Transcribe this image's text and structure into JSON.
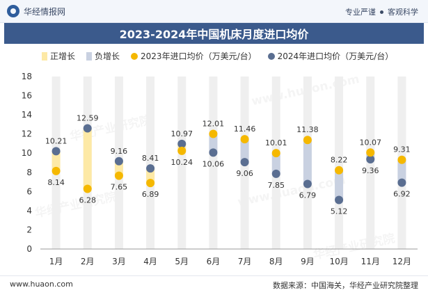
{
  "header": {
    "brand": "华经情报网",
    "tagline_left": "专业严谨",
    "tagline_right": "客观科学"
  },
  "title": "2023-2024年中国机床月度进口均价",
  "legend": {
    "pos_label": "正增长",
    "neg_label": "负增长",
    "s2023_label": "2023年进口均价（万美元/台）",
    "s2024_label": "2024年进口均价（万美元/台）"
  },
  "colors": {
    "pos": "#fde9a6",
    "neg": "#c9d1e1",
    "s2023": "#f5b800",
    "s2024": "#5a6e91",
    "bg_bar": "#efefef",
    "title_bg": "#3b5a8c"
  },
  "watermarks": [
    "华经产业研究院",
    "www.huaon.com"
  ],
  "chart_data": {
    "type": "dumbbell",
    "title": "2023-2024年中国机床月度进口均价",
    "categories": [
      "1月",
      "2月",
      "3月",
      "4月",
      "5月",
      "6月",
      "7月",
      "8月",
      "9月",
      "10月",
      "11月",
      "12月"
    ],
    "series": [
      {
        "name": "2023年进口均价（万美元/台）",
        "values": [
          8.14,
          6.28,
          7.65,
          6.89,
          10.24,
          12.01,
          11.46,
          10.01,
          11.38,
          8.22,
          10.07,
          9.31
        ]
      },
      {
        "name": "2024年进口均价（万美元/台）",
        "values": [
          10.21,
          12.59,
          9.16,
          8.41,
          10.97,
          10.06,
          9.06,
          7.85,
          6.79,
          5.12,
          9.36,
          6.92
        ]
      }
    ],
    "ylim": [
      0,
      18
    ],
    "yticks": [
      0,
      2,
      4,
      6,
      8,
      10,
      12,
      14,
      16,
      18
    ],
    "grid": false,
    "legend_position": "top"
  },
  "footer": {
    "website": "www.huaon.com",
    "source": "数据来源：中国海关，华经产业研究院整理"
  }
}
